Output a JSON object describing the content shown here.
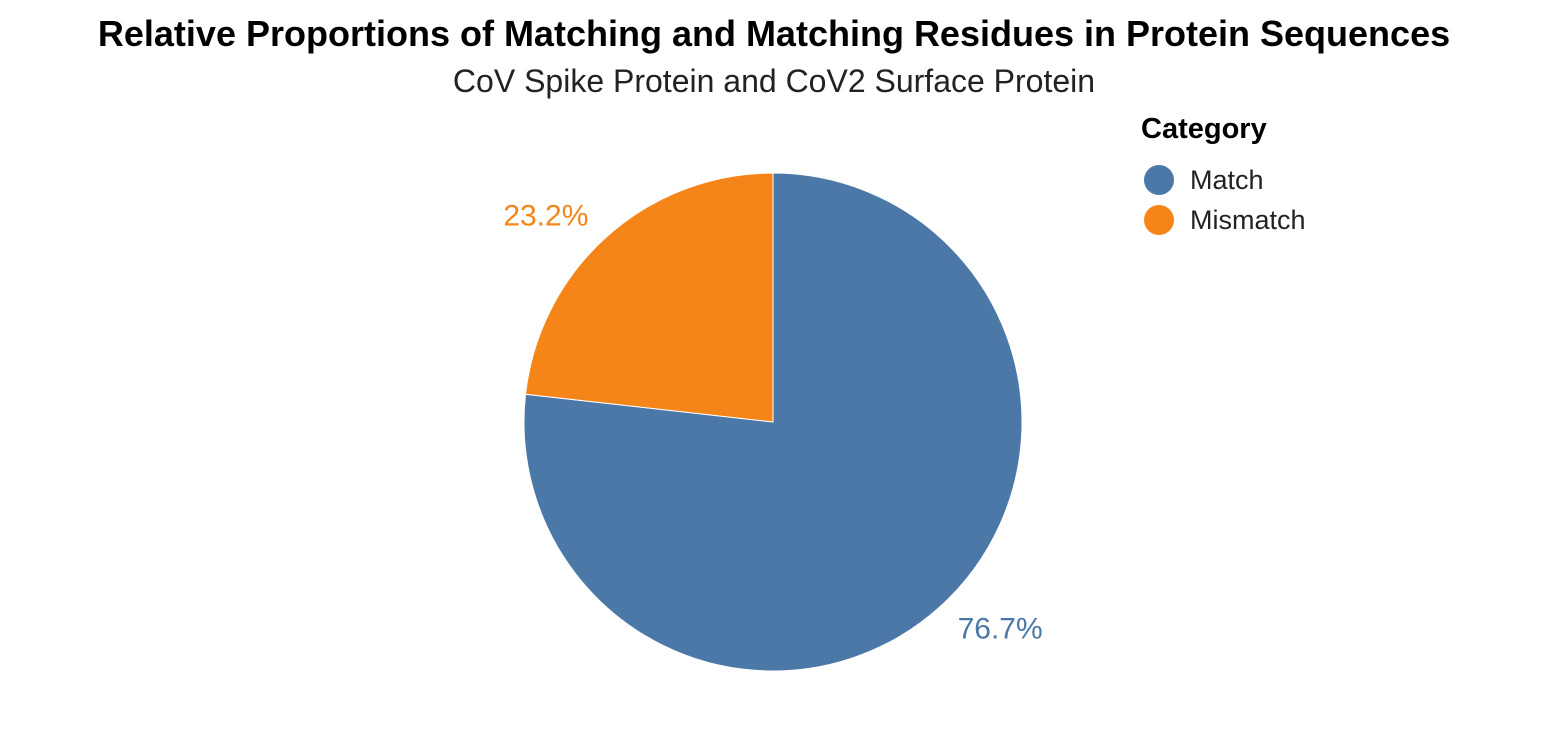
{
  "chart_data": {
    "type": "pie",
    "title": "Relative Proportions of Matching and Matching Residues in Protein Sequences",
    "subtitle": "CoV Spike Protein and CoV2 Surface Protein",
    "legend": {
      "title": "Category",
      "placement": "top-right"
    },
    "categories": [
      "Match",
      "Mismatch"
    ],
    "values": [
      76.7,
      23.2
    ],
    "labels": [
      "76.7%",
      "23.2%"
    ],
    "colors": [
      "#4c78a8",
      "#f58518"
    ],
    "start": "12 o'clock",
    "direction": "clockwise"
  }
}
